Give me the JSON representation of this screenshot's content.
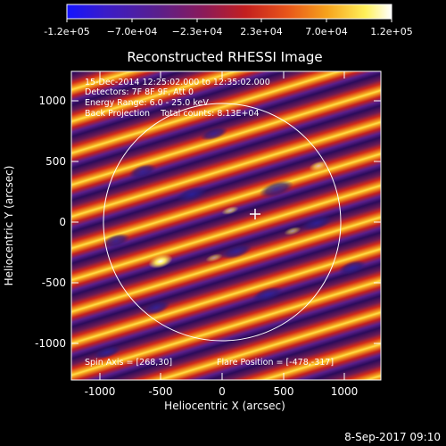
{
  "colorbar": {
    "tick_labels": [
      "-1.2e+05",
      "−7.0e+04",
      "−2.3e+04",
      "2.3e+04",
      "7.0e+04",
      "1.2e+05"
    ],
    "colors": [
      "#1414ff",
      "#3a1cc8",
      "#5a1f8c",
      "#8a1a5a",
      "#c31f1f",
      "#e8561a",
      "#f6a21c",
      "#fff15a",
      "#ffffff"
    ]
  },
  "plot": {
    "title": "Reconstructed RHESSI Image",
    "xlabel": "Heliocentric X (arcsec)",
    "ylabel": "Heliocentric Y (arcsec)",
    "x_ticks": [
      "-1000",
      "-500",
      "0",
      "500",
      "1000"
    ],
    "y_ticks": [
      "1000",
      "500",
      "0",
      "-500",
      "-1000"
    ],
    "info_lines": [
      "15-Dec-2014 12:25:02.000 to 12:35:02.000",
      "Detectors: 7F 8F 9F, Att 0",
      "Energy Range: 6.0 - 25.0 keV",
      "Back Projection    Total counts: 8.13E+04"
    ],
    "spin_axis": "Spin Axis = [268,30]",
    "flare_position": "Flare Position = [-478,-317]"
  },
  "footer": {
    "timestamp": "8-Sep-2017 09:10"
  }
}
